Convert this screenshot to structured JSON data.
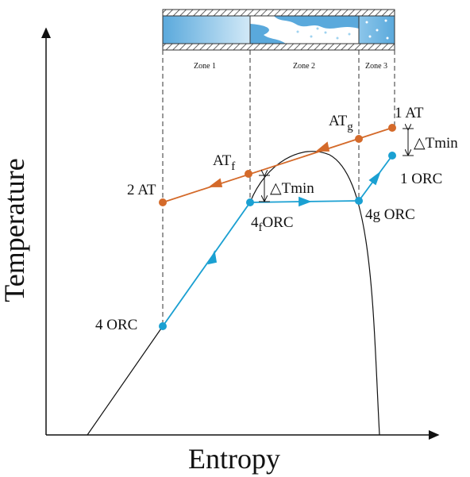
{
  "axes": {
    "y_label": "Temperature",
    "x_label": "Entropy"
  },
  "zones": [
    "Zone 1",
    "Zone 2",
    "Zone 3"
  ],
  "points": {
    "at1": "1 AT",
    "atg": {
      "main": "AT",
      "sub": "g"
    },
    "atf": {
      "main": "AT",
      "sub": "f"
    },
    "at2": "2 AT",
    "orc1": "1 ORC",
    "orc4g": "4g ORC",
    "orc4f": {
      "main": "4",
      "sub": "f",
      "rest": "ORC"
    },
    "orc4": "4 ORC"
  },
  "delta": [
    "△Tmin",
    "△Tmin"
  ]
}
